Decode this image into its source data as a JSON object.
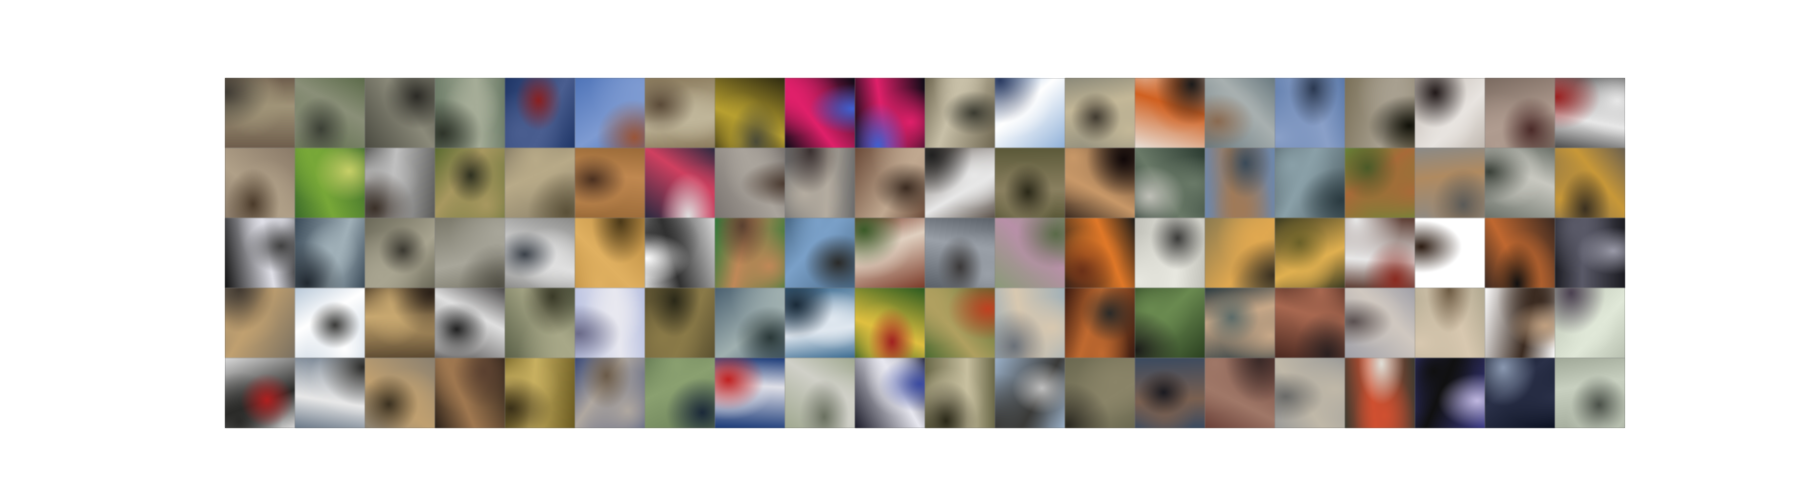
{
  "grid": {
    "rows": 5,
    "cols": 20,
    "tiles": [
      {
        "c": [
          "#6e5d4c",
          "#a09478",
          "#3e3a33"
        ]
      },
      {
        "c": [
          "#5c6b4a",
          "#8a8f78",
          "#3b3f35"
        ]
      },
      {
        "c": [
          "#4a4a40",
          "#8b8a7a",
          "#2b2a25"
        ]
      },
      {
        "c": [
          "#6a7a66",
          "#a6ad98",
          "#2e3329"
        ]
      },
      {
        "c": [
          "#1e3566",
          "#4a5e90",
          "#8a2020"
        ]
      },
      {
        "c": [
          "#4f74b8",
          "#7e9bd2",
          "#9a5538"
        ]
      },
      {
        "c": [
          "#8a7a5c",
          "#c0b69a",
          "#5a4a38"
        ]
      },
      {
        "c": [
          "#2e2a10",
          "#b8a030",
          "#4a4a38"
        ]
      },
      {
        "c": [
          "#0a0a14",
          "#e0206a",
          "#4060d0"
        ]
      },
      {
        "c": [
          "#0a0a14",
          "#e0206a",
          "#4060d0"
        ]
      },
      {
        "c": [
          "#6e6650",
          "#c8c0a8",
          "#3a3a30"
        ]
      },
      {
        "c": [
          "#8fb0d8",
          "#ffffff",
          "#2a3a60"
        ]
      },
      {
        "c": [
          "#8a8878",
          "#c4b898",
          "#403a30"
        ]
      },
      {
        "c": [
          "#e8e0d8",
          "#d06020",
          "#1a1a1a"
        ]
      },
      {
        "c": [
          "#6a7a80",
          "#a8b0b0",
          "#8a6a50"
        ]
      },
      {
        "c": [
          "#5a78a8",
          "#8aa0c8",
          "#2a3850"
        ]
      },
      {
        "c": [
          "#7a7058",
          "#a8a090",
          "#101008"
        ]
      },
      {
        "c": [
          "#c0b8b0",
          "#e8e4e0",
          "#201818"
        ]
      },
      {
        "c": [
          "#7a6a60",
          "#b09c90",
          "#4a2a28"
        ]
      },
      {
        "c": [
          "#4a4a4a",
          "#e8e8e8",
          "#9a2020"
        ]
      },
      {
        "c": [
          "#8a7a68",
          "#b0a088",
          "#4a3a2a"
        ]
      },
      {
        "c": [
          "#3a6a2a",
          "#78a838",
          "#c8d068"
        ]
      },
      {
        "c": [
          "#5a5a58",
          "#c0c0c0",
          "#3a3028"
        ]
      },
      {
        "c": [
          "#5a6a30",
          "#a89860",
          "#2e3020"
        ]
      },
      {
        "c": [
          "#8a8068",
          "#b8aa88",
          "#5a5038"
        ]
      },
      {
        "c": [
          "#9a6a38",
          "#c08850",
          "#4a3020"
        ]
      },
      {
        "c": [
          "#2a2a40",
          "#d04060",
          "#e0e0e0"
        ]
      },
      {
        "c": [
          "#7a7470",
          "#aaa49c",
          "#4a3a30"
        ]
      },
      {
        "c": [
          "#6a6a6a",
          "#b4aca0",
          "#3a3030"
        ]
      },
      {
        "c": [
          "#6a4a38",
          "#c0a890",
          "#3a2a20"
        ]
      },
      {
        "c": [
          "#5a5048",
          "#e8e8e8",
          "#202020"
        ]
      },
      {
        "c": [
          "#5a5838",
          "#8a8060",
          "#2a2818"
        ]
      },
      {
        "c": [
          "#3a2a20",
          "#c89868",
          "#100808"
        ]
      },
      {
        "c": [
          "#2a3a30",
          "#6a7a68",
          "#c0c0b8"
        ]
      },
      {
        "c": [
          "#6a88b0",
          "#a07a58",
          "#3a4a58"
        ]
      },
      {
        "c": [
          "#4a5a60",
          "#8aa0a8",
          "#2a3a40"
        ]
      },
      {
        "c": [
          "#6a8838",
          "#a86a38",
          "#4a5a28"
        ]
      },
      {
        "c": [
          "#8a8a88",
          "#b08a60",
          "#5a5a58"
        ]
      },
      {
        "c": [
          "#6a7068",
          "#c8c8c0",
          "#3a4038"
        ]
      },
      {
        "c": [
          "#6a6050",
          "#c89838",
          "#3a3020"
        ]
      },
      {
        "c": [
          "#101010",
          "#e0e0e8",
          "#404040"
        ]
      },
      {
        "c": [
          "#3a4a58",
          "#a0b0b8",
          "#202830"
        ]
      },
      {
        "c": [
          "#6a6858",
          "#a8a490",
          "#3a3830"
        ]
      },
      {
        "c": [
          "#7a786a",
          "#a8a69a",
          "#504e44"
        ]
      },
      {
        "c": [
          "#8a8a88",
          "#e0e0e0",
          "#3a4048"
        ]
      },
      {
        "c": [
          "#b88a40",
          "#e0b060",
          "#4a3818"
        ]
      },
      {
        "c": [
          "#d8d8d8",
          "#303030",
          "#ffffff"
        ]
      },
      {
        "c": [
          "#2a7a38",
          "#c08858",
          "#5a4030"
        ]
      },
      {
        "c": [
          "#4a6a88",
          "#7aa0c8",
          "#2a2a28"
        ]
      },
      {
        "c": [
          "#7a3a28",
          "#e0d0c0",
          "#3a5a28"
        ]
      },
      {
        "c": [
          "#5a6068",
          "#9aa0a8",
          "#3a3838"
        ]
      },
      {
        "c": [
          "#8a9a78",
          "#b890a8",
          "#5a6a48"
        ]
      },
      {
        "c": [
          "#1a1a18",
          "#e07828",
          "#6a3018"
        ]
      },
      {
        "c": [
          "#c0c0b8",
          "#e8e8e0",
          "#3a3a38"
        ]
      },
      {
        "c": [
          "#8a7a50",
          "#e0a850",
          "#3a3020"
        ]
      },
      {
        "c": [
          "#3a3a20",
          "#e0b050",
          "#6a6028"
        ]
      },
      {
        "c": [
          "#5a3a30",
          "#e8e8e8",
          "#8a2a20"
        ]
      },
      {
        "c": [
          "#ffffff",
          "#ffffff",
          "#2a1a10"
        ]
      },
      {
        "c": [
          "#3a2820",
          "#c06830",
          "#101010"
        ]
      },
      {
        "c": [
          "#1a1a20",
          "#5a5a68",
          "#9a9aa8"
        ]
      },
      {
        "c": [
          "#7a7060",
          "#c0a070",
          "#403830"
        ]
      },
      {
        "c": [
          "#b8c8d8",
          "#ffffff",
          "#3a3a38"
        ]
      },
      {
        "c": [
          "#5a4830",
          "#c8a870",
          "#2a2018"
        ]
      },
      {
        "c": [
          "#4a4848",
          "#e0e0e0",
          "#202020"
        ]
      },
      {
        "c": [
          "#5a6048",
          "#a8a888",
          "#3a3a28"
        ]
      },
      {
        "c": [
          "#b8c0e0",
          "#e8e8f0",
          "#6a6a88"
        ]
      },
      {
        "c": [
          "#5a5030",
          "#8a7a48",
          "#2a2818"
        ]
      },
      {
        "c": [
          "#4a6070",
          "#a0b0b0",
          "#2a3838"
        ]
      },
      {
        "c": [
          "#3a6a90",
          "#e0e8f0",
          "#1a2a38"
        ]
      },
      {
        "c": [
          "#2a5a20",
          "#e0c040",
          "#a02020"
        ]
      },
      {
        "c": [
          "#4a6a30",
          "#b0a060",
          "#c04020"
        ]
      },
      {
        "c": [
          "#a0b0b8",
          "#d8c8b0",
          "#6a7078"
        ]
      },
      {
        "c": [
          "#3a1a10",
          "#c06a30",
          "#2a2a28"
        ]
      },
      {
        "c": [
          "#2a4020",
          "#6a8a50",
          "#1a1a18"
        ]
      },
      {
        "c": [
          "#2a3a40",
          "#c8a888",
          "#5a6a68"
        ]
      },
      {
        "c": [
          "#4a2820",
          "#a86850",
          "#2a2020"
        ]
      },
      {
        "c": [
          "#a0a0a8",
          "#d0c8c0",
          "#5a5050"
        ]
      },
      {
        "c": [
          "#b0a890",
          "#d8c8b0",
          "#6a5840"
        ]
      },
      {
        "c": [
          "#ffffff",
          "#3a2a20",
          "#c0a080"
        ]
      },
      {
        "c": [
          "#b8c0b0",
          "#e0e8d8",
          "#4a4050"
        ]
      },
      {
        "c": [
          "#d8d8d8",
          "#2a2a28",
          "#b02020"
        ]
      },
      {
        "c": [
          "#6a7888",
          "#e8e8e8",
          "#2a2a28"
        ]
      },
      {
        "c": [
          "#8a8070",
          "#c0a070",
          "#3a3020"
        ]
      },
      {
        "c": [
          "#2a2018",
          "#a07850",
          "#5a4030"
        ]
      },
      {
        "c": [
          "#6a5a20",
          "#c8b060",
          "#3a3018"
        ]
      },
      {
        "c": [
          "#3a4a78",
          "#b0a8a0",
          "#6a5a48"
        ]
      },
      {
        "c": [
          "#6a8058",
          "#8aa070",
          "#1a2838"
        ]
      },
      {
        "c": [
          "#1a3a78",
          "#e0e0e8",
          "#c02020"
        ]
      },
      {
        "c": [
          "#a0a890",
          "#d0d0c8",
          "#6a7060"
        ]
      },
      {
        "c": [
          "#1a1a28",
          "#e8e8f0",
          "#3a4aa0"
        ]
      },
      {
        "c": [
          "#6a6848",
          "#c8c0a0",
          "#2a2818"
        ]
      },
      {
        "c": [
          "#9ab0c8",
          "#3a3a38",
          "#c0c0c0"
        ]
      },
      {
        "c": [
          "#6a6850",
          "#8a8468",
          "#2a2820"
        ]
      },
      {
        "c": [
          "#3a4a60",
          "#7a6050",
          "#1a1a20"
        ]
      },
      {
        "c": [
          "#6a4038",
          "#a07868",
          "#3a2a28"
        ]
      },
      {
        "c": [
          "#9a9a98",
          "#c0b8a8",
          "#6a6a68"
        ]
      },
      {
        "c": [
          "#3a3a30",
          "#d05030",
          "#e0e0d8"
        ]
      },
      {
        "c": [
          "#3a3a88",
          "#101010",
          "#c0b8e0"
        ]
      },
      {
        "c": [
          "#0a1020",
          "#2a3048",
          "#8a98b0"
        ]
      },
      {
        "c": [
          "#a0a898",
          "#c8d0c0",
          "#4a5048"
        ]
      }
    ]
  }
}
